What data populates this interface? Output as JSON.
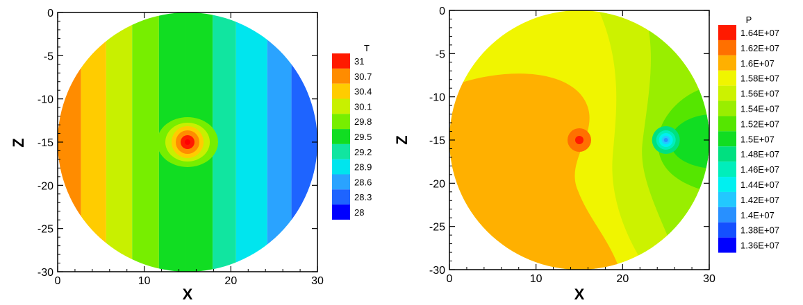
{
  "chart_data": [
    {
      "type": "heatmap",
      "title": "",
      "xlabel": "X",
      "ylabel": "Z",
      "xlim": [
        0,
        30
      ],
      "ylim": [
        -30,
        0
      ],
      "x_ticks": [
        "0",
        "10",
        "20",
        "30"
      ],
      "y_ticks": [
        "0",
        "-5",
        "-10",
        "-15",
        "-20",
        "-25",
        "-30"
      ],
      "domain_shape": "circle",
      "circle_center": [
        15,
        -15
      ],
      "circle_radius": 15,
      "legend_title": "T",
      "legend_labels": [
        "31",
        "30.7",
        "30.4",
        "30.1",
        "29.8",
        "29.5",
        "29.2",
        "28.9",
        "28.6",
        "28.3",
        "28"
      ],
      "legend_placement": "right",
      "contour_levels": [
        28.0,
        28.3,
        28.6,
        28.9,
        29.2,
        29.5,
        29.8,
        30.1,
        30.4,
        30.7,
        31.0
      ],
      "colormap": [
        "#0000ff",
        "#1e64ff",
        "#2aa3ff",
        "#00e5ee",
        "#11e5a0",
        "#11dd22",
        "#77ee00",
        "#c8f000",
        "#ffcc00",
        "#ff8c00",
        "#ff1a00"
      ],
      "hot_spot": [
        15,
        -15
      ],
      "annotations": []
    },
    {
      "type": "heatmap",
      "title": "",
      "xlabel": "X",
      "ylabel": "Z",
      "xlim": [
        0,
        30
      ],
      "ylim": [
        -30,
        0
      ],
      "x_ticks": [
        "0",
        "10",
        "20",
        "30"
      ],
      "y_ticks": [
        "0",
        "-5",
        "-10",
        "-15",
        "-20",
        "-25",
        "-30"
      ],
      "domain_shape": "circle",
      "circle_center": [
        15,
        -15
      ],
      "circle_radius": 15,
      "legend_title": "P",
      "legend_labels": [
        "1.64E+07",
        "1.62E+07",
        "1.6E+07",
        "1.58E+07",
        "1.56E+07",
        "1.54E+07",
        "1.52E+07",
        "1.5E+07",
        "1.48E+07",
        "1.46E+07",
        "1.44E+07",
        "1.42E+07",
        "1.4E+07",
        "1.38E+07",
        "1.36E+07"
      ],
      "legend_placement": "right",
      "contour_levels": [
        13600000.0,
        13800000.0,
        14000000.0,
        14200000.0,
        14400000.0,
        14600000.0,
        14800000.0,
        15000000.0,
        15200000.0,
        15400000.0,
        15600000.0,
        15800000.0,
        16000000.0,
        16200000.0,
        16400000.0
      ],
      "colormap": [
        "#0000ff",
        "#1450ff",
        "#2890ff",
        "#22c8ff",
        "#00f0f0",
        "#00eebb",
        "#00e080",
        "#11dd22",
        "#55e600",
        "#99ee00",
        "#ccf200",
        "#f0f500",
        "#ffb000",
        "#ff7000",
        "#ff1a00"
      ],
      "injector": [
        15,
        -15
      ],
      "producer": [
        25,
        -15
      ],
      "annotations": []
    }
  ]
}
